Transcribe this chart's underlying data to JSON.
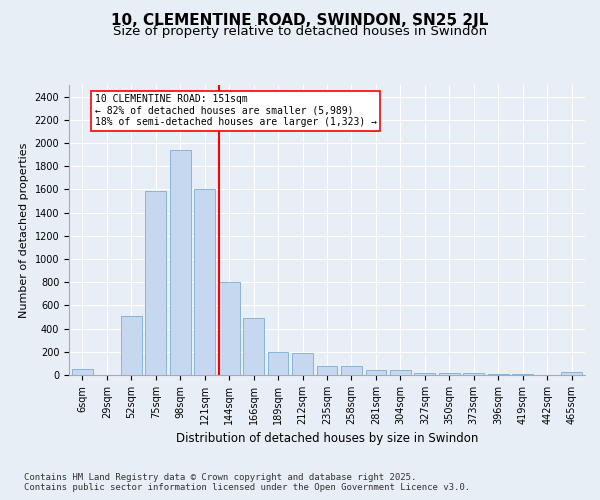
{
  "title": "10, CLEMENTINE ROAD, SWINDON, SN25 2JL",
  "subtitle": "Size of property relative to detached houses in Swindon",
  "xlabel": "Distribution of detached houses by size in Swindon",
  "ylabel": "Number of detached properties",
  "categories": [
    "6sqm",
    "29sqm",
    "52sqm",
    "75sqm",
    "98sqm",
    "121sqm",
    "144sqm",
    "166sqm",
    "189sqm",
    "212sqm",
    "235sqm",
    "258sqm",
    "281sqm",
    "304sqm",
    "327sqm",
    "350sqm",
    "373sqm",
    "396sqm",
    "419sqm",
    "442sqm",
    "465sqm"
  ],
  "values": [
    50,
    0,
    510,
    1590,
    1940,
    1600,
    800,
    490,
    195,
    190,
    75,
    75,
    40,
    40,
    20,
    20,
    15,
    10,
    5,
    0,
    30
  ],
  "bar_color": "#c5d8f0",
  "bar_edge_color": "#7aadd4",
  "vline_color": "red",
  "vline_x_index": 6,
  "annotation_text": "10 CLEMENTINE ROAD: 151sqm\n← 82% of detached houses are smaller (5,989)\n18% of semi-detached houses are larger (1,323) →",
  "annotation_box_color": "white",
  "annotation_box_edge_color": "red",
  "ylim": [
    0,
    2500
  ],
  "yticks": [
    0,
    200,
    400,
    600,
    800,
    1000,
    1200,
    1400,
    1600,
    1800,
    2000,
    2200,
    2400
  ],
  "background_color": "#e8eef5",
  "footer_text": "Contains HM Land Registry data © Crown copyright and database right 2025.\nContains public sector information licensed under the Open Government Licence v3.0.",
  "title_fontsize": 11,
  "subtitle_fontsize": 9.5,
  "xlabel_fontsize": 8.5,
  "ylabel_fontsize": 8,
  "tick_fontsize": 7,
  "annotation_fontsize": 7,
  "footer_fontsize": 6.5
}
